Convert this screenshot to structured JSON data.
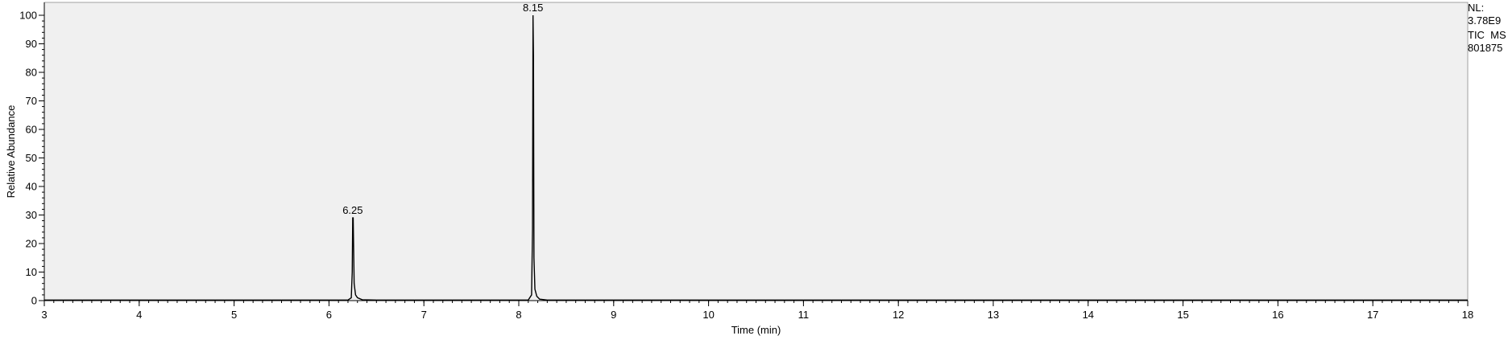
{
  "side_info": {
    "nl_label": "NL:",
    "nl_value": "3.78E9",
    "trace": "TIC  MS",
    "file": "801875"
  },
  "chart_data": {
    "type": "line",
    "xlabel": "Time (min)",
    "ylabel": "Relative Abundance",
    "xlim": [
      3,
      18
    ],
    "ylim": [
      0,
      100
    ],
    "x_ticks": [
      3,
      4,
      5,
      6,
      7,
      8,
      9,
      10,
      11,
      12,
      13,
      14,
      15,
      16,
      17,
      18
    ],
    "y_ticks": [
      0,
      10,
      20,
      30,
      40,
      50,
      60,
      70,
      80,
      90,
      100
    ],
    "plot_background": "#f0f0f0",
    "line_color": "#000000",
    "series": [
      {
        "x": [
          3.0,
          6.2,
          6.235,
          6.245,
          6.25,
          6.255,
          6.265,
          6.28,
          6.3,
          6.35,
          6.5,
          8.1,
          8.135,
          8.145,
          8.15,
          8.155,
          8.16,
          8.17,
          8.19,
          8.22,
          8.3,
          18.0
        ],
        "y": [
          0.2,
          0.2,
          1,
          10,
          29,
          29,
          6,
          2,
          1,
          0.3,
          0.2,
          0.2,
          2,
          25,
          100,
          85,
          15,
          4,
          1.5,
          0.5,
          0.2,
          0.2
        ]
      }
    ],
    "annotations": [
      {
        "x": 6.25,
        "y": 29,
        "text": "6.25"
      },
      {
        "x": 8.15,
        "y": 100,
        "text": "8.15"
      }
    ]
  }
}
